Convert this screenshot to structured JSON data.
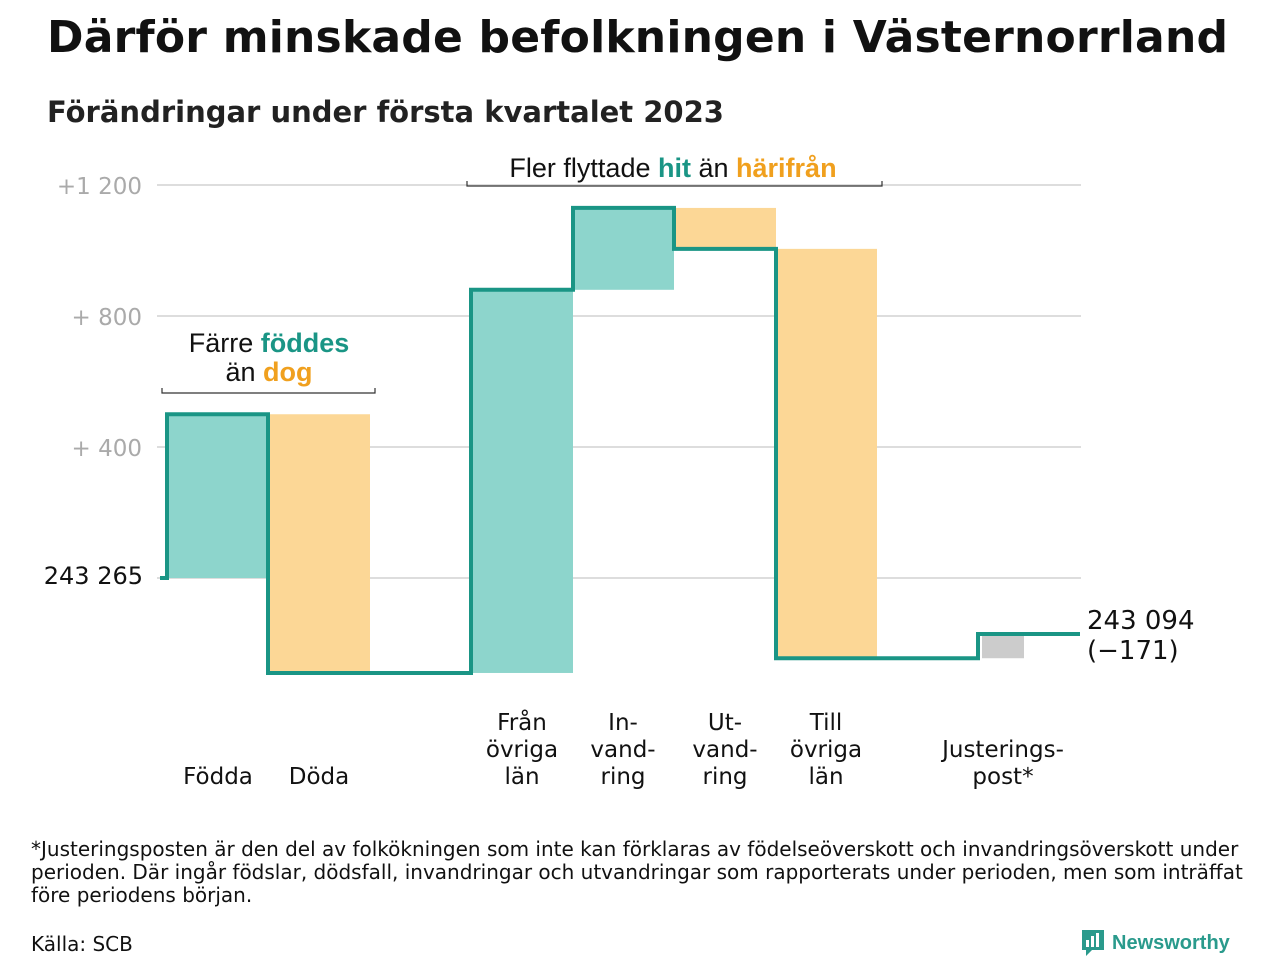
{
  "header": {
    "title": "Därför minskade befolkningen i Västernorrland",
    "subtitle": "Förändringar under första kvartalet 2023"
  },
  "colors": {
    "inflow": "#8dd5cc",
    "outflow": "#fcd796",
    "adjustment": "#cccccc",
    "line": "#1a9585",
    "accent_teal": "#1a9585",
    "accent_orange": "#f0a01e",
    "grid": "#dddddd",
    "tick_text": "#aaaaaa"
  },
  "chart_data": {
    "type": "waterfall",
    "start_value": 243265,
    "end_value": 243094,
    "net_change": -171,
    "ylim": [
      -300,
      1200
    ],
    "y_ticks": [
      {
        "value": 1200,
        "label": "+1 200"
      },
      {
        "value": 800,
        "label": "+ 800"
      },
      {
        "value": 400,
        "label": "+ 400"
      }
    ],
    "start_label": "243 265",
    "end_label_value": "243 094",
    "end_label_change": "(−171)",
    "steps": [
      {
        "key": "fodda",
        "label_lines": [
          "Födda"
        ],
        "change": 500,
        "kind": "inflow"
      },
      {
        "key": "doda",
        "label_lines": [
          "Döda"
        ],
        "change": -790,
        "kind": "outflow"
      },
      {
        "key": "fran_ovriga",
        "label_lines": [
          "Från",
          "övriga",
          "län"
        ],
        "change": 1170,
        "kind": "inflow"
      },
      {
        "key": "invandring",
        "label_lines": [
          "In-",
          "vand-",
          "ring"
        ],
        "change": 250,
        "kind": "inflow"
      },
      {
        "key": "utvandring",
        "label_lines": [
          "Ut-",
          "vand-",
          "ring"
        ],
        "change": -125,
        "kind": "outflow"
      },
      {
        "key": "till_ovriga",
        "label_lines": [
          "Till",
          "övriga",
          "län"
        ],
        "change": -1250,
        "kind": "outflow"
      },
      {
        "key": "justering",
        "label_lines": [
          "Justerings-",
          "post*"
        ],
        "change": 74,
        "kind": "adjustment"
      }
    ],
    "annotations": [
      {
        "key": "births",
        "parts": [
          {
            "text": "Färre ",
            "style": "plain"
          },
          {
            "text": "föddes",
            "style": "teal"
          },
          {
            "text": "än ",
            "style": "plain",
            "newline": true
          },
          {
            "text": "dog",
            "style": "orange"
          }
        ]
      },
      {
        "key": "migration",
        "parts": [
          {
            "text": "Fler flyttade ",
            "style": "plain"
          },
          {
            "text": "hit",
            "style": "teal"
          },
          {
            "text": " än ",
            "style": "plain"
          },
          {
            "text": "härifrån",
            "style": "orange"
          }
        ]
      }
    ]
  },
  "footnote": "*Justeringsposten är den del av folkökningen som inte kan förklaras av födelseöverskott och invandringsöverskott under perioden. Där ingår födslar, dödsfall, invandringar och utvandringar som rapporterats under perioden, men som inträffat före periodens början.",
  "source": "Källa: SCB",
  "brand": {
    "name": "Newsworthy",
    "icon": "newsworthy-logo-icon"
  }
}
